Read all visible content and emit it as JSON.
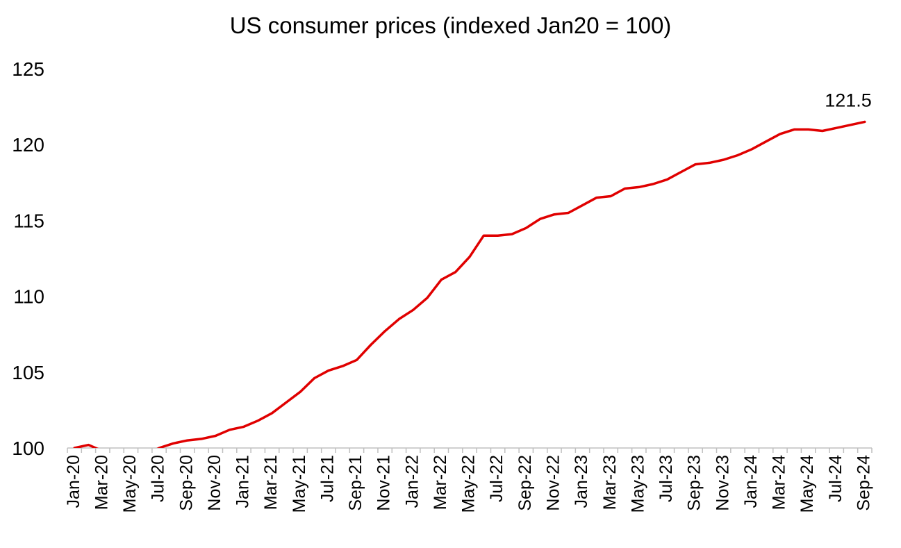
{
  "chart_data": {
    "type": "line",
    "title": "US consumer prices (indexed Jan20 = 100)",
    "xlabel": "",
    "ylabel": "",
    "ylim": [
      100,
      125
    ],
    "yticks": [
      100,
      105,
      110,
      115,
      120,
      125
    ],
    "grid": false,
    "legend": "none",
    "x": [
      "Jan-20",
      "Feb-20",
      "Mar-20",
      "Apr-20",
      "May-20",
      "Jun-20",
      "Jul-20",
      "Aug-20",
      "Sep-20",
      "Oct-20",
      "Nov-20",
      "Dec-20",
      "Jan-21",
      "Feb-21",
      "Mar-21",
      "Apr-21",
      "May-21",
      "Jun-21",
      "Jul-21",
      "Aug-21",
      "Sep-21",
      "Oct-21",
      "Nov-21",
      "Dec-21",
      "Jan-22",
      "Feb-22",
      "Mar-22",
      "Apr-22",
      "May-22",
      "Jun-22",
      "Jul-22",
      "Aug-22",
      "Sep-22",
      "Oct-22",
      "Nov-22",
      "Dec-22",
      "Jan-23",
      "Feb-23",
      "Mar-23",
      "Apr-23",
      "May-23",
      "Jun-23",
      "Jul-23",
      "Aug-23",
      "Sep-23",
      "Oct-23",
      "Nov-23",
      "Dec-23",
      "Jan-24",
      "Feb-24",
      "Mar-24",
      "Apr-24",
      "May-24",
      "Jun-24",
      "Jul-24",
      "Aug-24",
      "Sep-24"
    ],
    "x_tick_labels": [
      "Jan-20",
      "Mar-20",
      "May-20",
      "Jul-20",
      "Sep-20",
      "Nov-20",
      "Jan-21",
      "Mar-21",
      "May-21",
      "Jul-21",
      "Sep-21",
      "Nov-21",
      "Jan-22",
      "Mar-22",
      "May-22",
      "Jul-22",
      "Sep-22",
      "Nov-22",
      "Jan-23",
      "Mar-23",
      "May-23",
      "Jul-23",
      "Sep-23",
      "Nov-23",
      "Jan-24",
      "Mar-24",
      "May-24",
      "Jul-24",
      "Sep-24"
    ],
    "series": [
      {
        "color": "#e00000",
        "values": [
          100.0,
          100.2,
          99.8,
          99.1,
          99.0,
          99.5,
          100.0,
          100.3,
          100.5,
          100.6,
          100.8,
          101.2,
          101.4,
          101.8,
          102.3,
          103.0,
          103.7,
          104.6,
          105.1,
          105.4,
          105.8,
          106.8,
          107.7,
          108.5,
          109.1,
          109.9,
          111.1,
          111.6,
          112.6,
          114.0,
          114.0,
          114.1,
          114.5,
          115.1,
          115.4,
          115.5,
          116.0,
          116.5,
          116.6,
          117.1,
          117.2,
          117.4,
          117.7,
          118.2,
          118.7,
          118.8,
          119.0,
          119.3,
          119.7,
          120.2,
          120.7,
          121.0,
          121.0,
          120.9,
          121.1,
          121.3,
          121.5
        ]
      }
    ],
    "annotations": [
      {
        "text": "121.5",
        "x": "Sep-24",
        "y": 121.5
      }
    ]
  }
}
